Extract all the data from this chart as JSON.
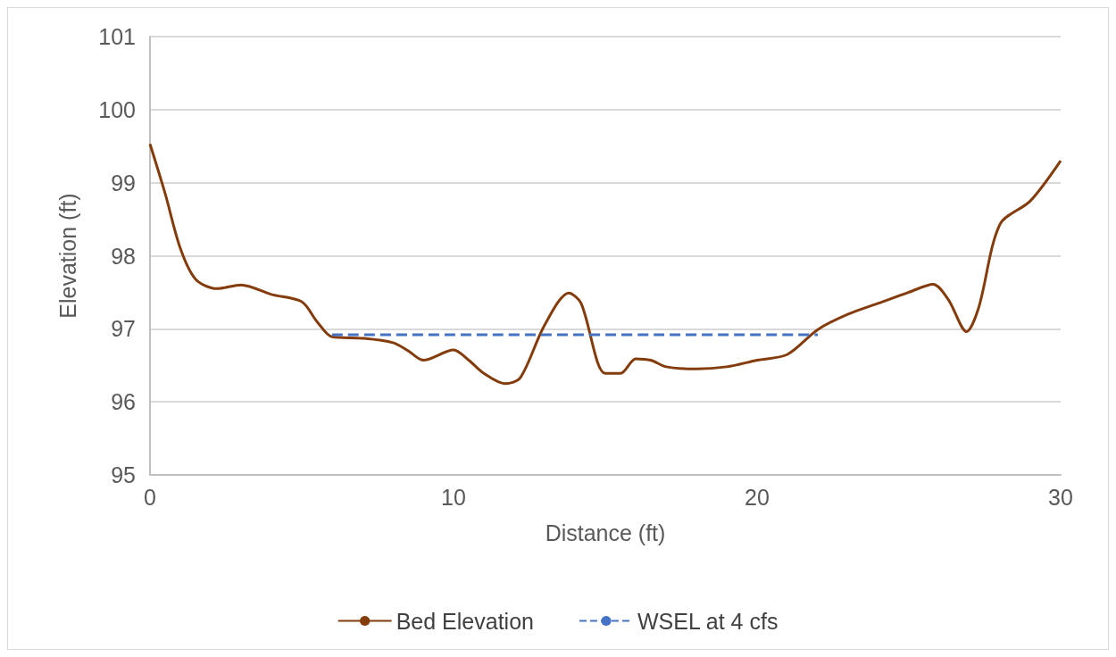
{
  "chart_data": {
    "type": "line",
    "xlabel": "Distance (ft)",
    "ylabel": "Elevation (ft)",
    "xlim": [
      0,
      30
    ],
    "xticks": [
      0,
      10,
      20,
      30
    ],
    "ylim": [
      95,
      101
    ],
    "yticks": [
      95,
      96,
      97,
      98,
      99,
      100,
      101
    ],
    "grid": "y",
    "legend": "bottom",
    "marker": "none",
    "series": [
      {
        "name": "Bed Elevation",
        "color": "#843c0c",
        "line_style": "solid",
        "x": [
          0,
          0.5,
          1,
          1.5,
          2.2,
          3,
          4,
          5,
          5.5,
          6,
          7,
          8,
          8.5,
          9,
          10,
          10.5,
          11,
          11.7,
          12.2,
          13,
          13.8,
          14.2,
          15,
          15.5,
          16,
          16.5,
          17,
          18,
          19,
          20,
          21,
          22,
          23,
          24,
          25,
          25.8,
          26.3,
          26.9,
          27.3,
          28,
          29,
          30
        ],
        "values": [
          99.53,
          98.85,
          98.1,
          97.68,
          97.55,
          97.6,
          97.47,
          97.37,
          97.1,
          96.89,
          96.87,
          96.81,
          96.7,
          96.57,
          96.71,
          96.57,
          96.39,
          96.25,
          96.33,
          97.05,
          97.49,
          97.35,
          96.39,
          96.39,
          96.59,
          96.57,
          96.48,
          96.45,
          96.48,
          96.57,
          96.65,
          96.99,
          97.2,
          97.35,
          97.5,
          97.61,
          97.4,
          96.96,
          97.29,
          98.43,
          98.75,
          99.3
        ]
      },
      {
        "name": "WSEL at 4 cfs",
        "color": "#4472c4",
        "line_style": "dashed",
        "x": [
          6,
          22
        ],
        "values": [
          96.92,
          96.92
        ]
      }
    ]
  }
}
